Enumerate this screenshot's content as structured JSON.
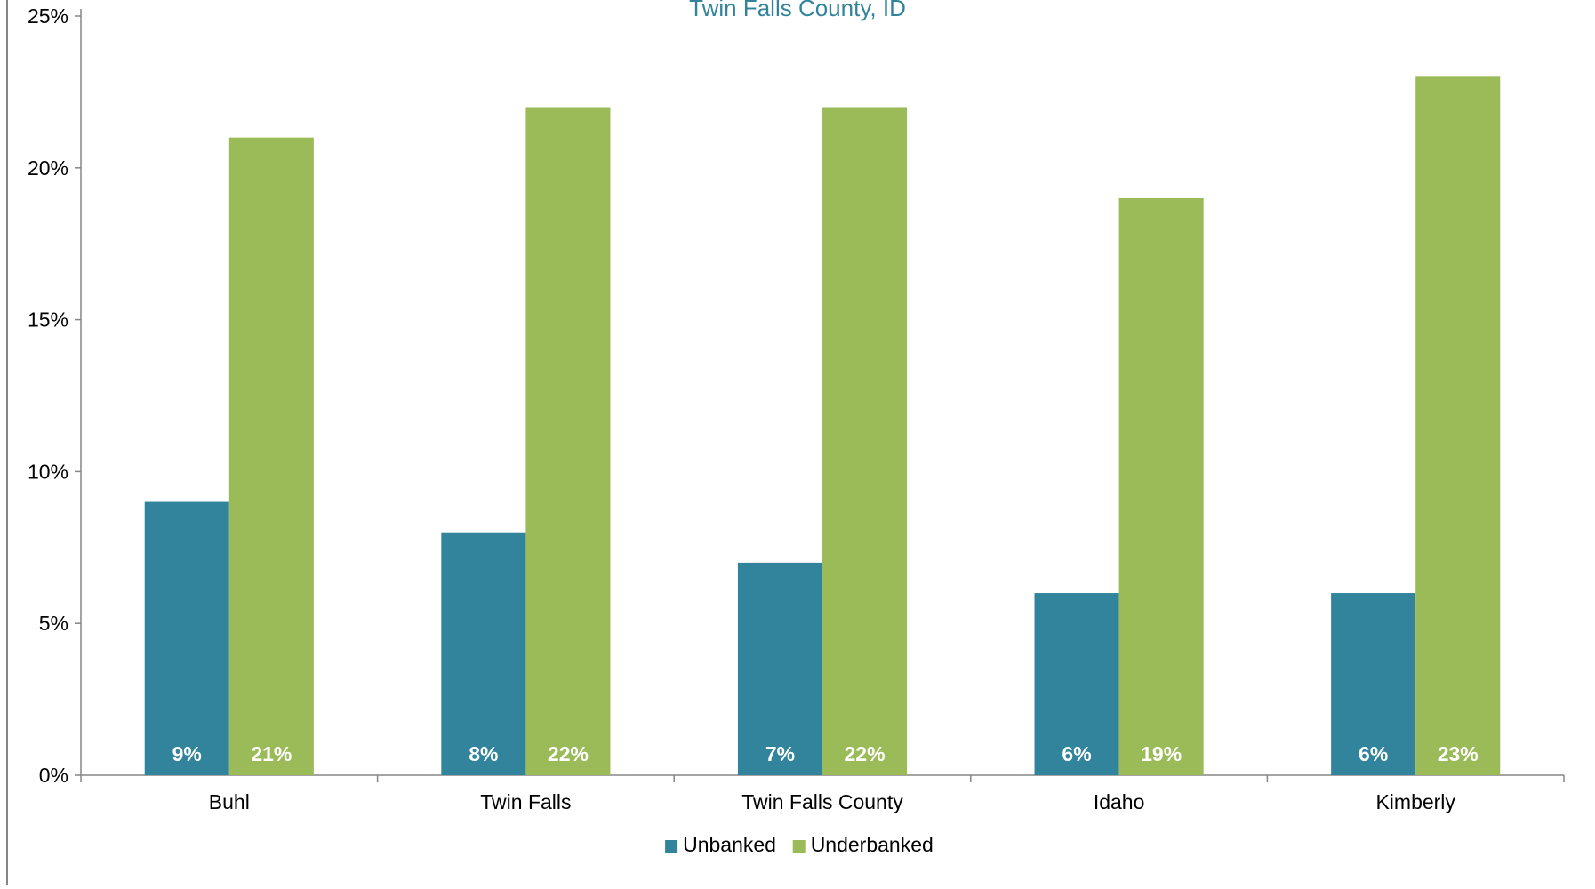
{
  "chart_data": {
    "type": "bar",
    "title": "Twin Falls County, ID",
    "xlabel": "",
    "ylabel": "",
    "categories": [
      "Buhl",
      "Twin Falls",
      "Twin Falls County",
      "Idaho",
      "Kimberly"
    ],
    "series": [
      {
        "name": "Unbanked",
        "values": [
          9,
          8,
          7,
          6,
          6
        ],
        "labels": [
          "9%",
          "8%",
          "7%",
          "6%",
          "6%"
        ],
        "color": "#31849B"
      },
      {
        "name": "Underbanked",
        "values": [
          21,
          22,
          22,
          19,
          23
        ],
        "labels": [
          "21%",
          "22%",
          "22%",
          "19%",
          "23%"
        ],
        "color": "#9BBB59"
      }
    ],
    "ylim": [
      0,
      25
    ],
    "yticks": [
      0,
      5,
      10,
      15,
      20,
      25
    ],
    "ytick_labels": [
      "0%",
      "5%",
      "10%",
      "15%",
      "20%",
      "25%"
    ],
    "grid": false,
    "legend_position": "bottom",
    "axis_color": "#868686",
    "frame_color": "#868686"
  }
}
